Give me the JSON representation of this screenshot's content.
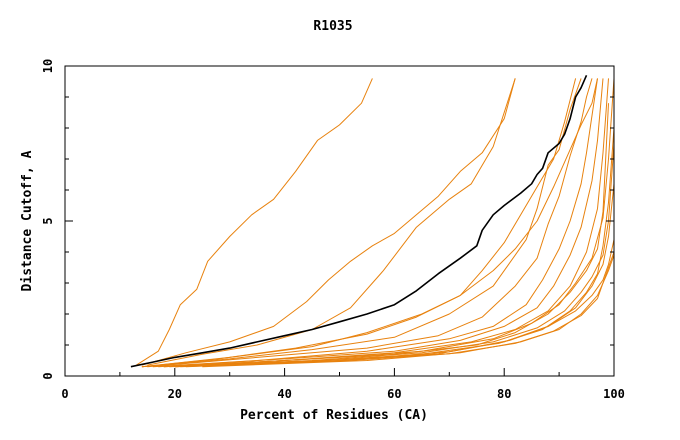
{
  "chart_data": {
    "type": "line",
    "title": "R1035",
    "xlabel": "Percent of Residues (CA)",
    "ylabel": "Distance Cutoff, A",
    "xlim": [
      0,
      100
    ],
    "ylim": [
      0,
      10
    ],
    "x_ticks": [
      "0",
      "20",
      "40",
      "60",
      "80",
      "100"
    ],
    "y_ticks": [
      "0",
      "5",
      "10"
    ],
    "grid": false,
    "legend": "none",
    "colors": {
      "highlight": "#000000",
      "others": "#e8820e"
    },
    "highlight_series": {
      "x": [
        12,
        16,
        20,
        25,
        30,
        35,
        40,
        45,
        50,
        55,
        60,
        64,
        68,
        72,
        75,
        76,
        78,
        80,
        83,
        85,
        86,
        87,
        88,
        90,
        91,
        92,
        93,
        94,
        95
      ],
      "y": [
        0.3,
        0.45,
        0.6,
        0.75,
        0.9,
        1.1,
        1.3,
        1.5,
        1.75,
        2.0,
        2.3,
        2.75,
        3.3,
        3.8,
        4.2,
        4.7,
        5.2,
        5.5,
        5.9,
        6.2,
        6.5,
        6.7,
        7.2,
        7.5,
        7.8,
        8.3,
        9.0,
        9.3,
        9.7
      ]
    },
    "series": [
      {
        "x": [
          13,
          17,
          19,
          21,
          24,
          26,
          30,
          34,
          38,
          42,
          46,
          50,
          54,
          56
        ],
        "y": [
          0.35,
          0.8,
          1.5,
          2.3,
          2.8,
          3.7,
          4.5,
          5.2,
          5.7,
          6.6,
          7.6,
          8.1,
          8.8,
          9.6
        ]
      },
      {
        "x": [
          14,
          22,
          30,
          38,
          44,
          48,
          52,
          56,
          60,
          64,
          68,
          72,
          76,
          80,
          82
        ],
        "y": [
          0.35,
          0.75,
          1.1,
          1.6,
          2.4,
          3.1,
          3.7,
          4.2,
          4.6,
          5.2,
          5.8,
          6.6,
          7.2,
          8.3,
          9.6
        ]
      },
      {
        "x": [
          15,
          25,
          35,
          45,
          52,
          58,
          64,
          70,
          74,
          78,
          82
        ],
        "y": [
          0.35,
          0.7,
          1.0,
          1.5,
          2.2,
          3.4,
          4.8,
          5.7,
          6.2,
          7.4,
          9.6
        ]
      },
      {
        "x": [
          14,
          30,
          45,
          55,
          65,
          72,
          76,
          80,
          83,
          86,
          89,
          91,
          93
        ],
        "y": [
          0.3,
          0.6,
          0.95,
          1.4,
          2.0,
          2.6,
          3.4,
          4.3,
          5.2,
          6.1,
          7.0,
          8.2,
          9.6
        ]
      },
      {
        "x": [
          14,
          30,
          45,
          60,
          70,
          78,
          84,
          86,
          88,
          90,
          92,
          94
        ],
        "y": [
          0.3,
          0.55,
          0.85,
          1.25,
          2.0,
          2.9,
          4.4,
          5.4,
          6.8,
          7.3,
          8.6,
          9.6
        ]
      },
      {
        "x": [
          15,
          35,
          55,
          68,
          76,
          82,
          86,
          88,
          90,
          92,
          94,
          95,
          96
        ],
        "y": [
          0.3,
          0.6,
          0.9,
          1.3,
          1.9,
          2.9,
          3.8,
          4.9,
          5.8,
          7.1,
          8.2,
          9.0,
          9.6
        ]
      },
      {
        "x": [
          16,
          35,
          55,
          70,
          78,
          84,
          87,
          90,
          92,
          94,
          95,
          96,
          97
        ],
        "y": [
          0.3,
          0.5,
          0.8,
          1.2,
          1.6,
          2.3,
          3.1,
          4.1,
          5.0,
          6.2,
          7.2,
          8.4,
          9.6
        ]
      },
      {
        "x": [
          17,
          40,
          60,
          72,
          80,
          86,
          89,
          92,
          94,
          96,
          97,
          98
        ],
        "y": [
          0.3,
          0.55,
          0.8,
          1.15,
          1.6,
          2.2,
          2.9,
          3.9,
          4.8,
          6.3,
          7.6,
          9.6
        ]
      },
      {
        "x": [
          18,
          40,
          60,
          74,
          82,
          88,
          92,
          95,
          97,
          98,
          99
        ],
        "y": [
          0.3,
          0.5,
          0.75,
          1.1,
          1.5,
          2.1,
          2.9,
          4.0,
          5.4,
          7.2,
          9.6
        ]
      },
      {
        "x": [
          20,
          45,
          65,
          78,
          85,
          90,
          93,
          96,
          98,
          99,
          100
        ],
        "y": [
          0.3,
          0.55,
          0.8,
          1.2,
          1.7,
          2.3,
          3.0,
          3.8,
          5.1,
          7.0,
          9.6
        ]
      },
      {
        "x": [
          18,
          40,
          60,
          75,
          82,
          88,
          92,
          95,
          97,
          98,
          99
        ],
        "y": [
          0.3,
          0.5,
          0.7,
          1.0,
          1.4,
          2.0,
          2.7,
          3.4,
          4.1,
          5.3,
          8.8
        ]
      },
      {
        "x": [
          19,
          45,
          65,
          78,
          86,
          91,
          94,
          96,
          98,
          99,
          100
        ],
        "y": [
          0.3,
          0.5,
          0.75,
          1.1,
          1.55,
          2.1,
          2.7,
          3.2,
          3.9,
          5.0,
          7.5
        ]
      },
      {
        "x": [
          20,
          45,
          65,
          79,
          87,
          92,
          95,
          97,
          98,
          99,
          100,
          100
        ],
        "y": [
          0.3,
          0.48,
          0.7,
          1.05,
          1.5,
          2.1,
          2.7,
          3.3,
          4.2,
          5.6,
          8.0,
          9.6
        ]
      },
      {
        "x": [
          21,
          48,
          68,
          80,
          88,
          93,
          96,
          98,
          99,
          100,
          100
        ],
        "y": [
          0.3,
          0.48,
          0.72,
          1.1,
          1.6,
          2.2,
          2.9,
          3.6,
          4.5,
          6.2,
          9.6
        ]
      },
      {
        "x": [
          20,
          50,
          70,
          81,
          88,
          93,
          96,
          98,
          99,
          100,
          100
        ],
        "y": [
          0.3,
          0.5,
          0.78,
          1.15,
          1.6,
          2.1,
          2.6,
          3.1,
          3.6,
          4.4,
          5.2
        ]
      },
      {
        "x": [
          22,
          50,
          70,
          82,
          89,
          94,
          97,
          98,
          99,
          100,
          100
        ],
        "y": [
          0.3,
          0.48,
          0.72,
          1.05,
          1.45,
          1.95,
          2.5,
          3.0,
          3.5,
          4.0,
          4.8
        ]
      },
      {
        "x": [
          25,
          55,
          72,
          83,
          90,
          94,
          97,
          98,
          99,
          100
        ],
        "y": [
          0.3,
          0.5,
          0.75,
          1.1,
          1.5,
          2.0,
          2.6,
          3.0,
          3.4,
          3.9
        ]
      },
      {
        "x": [
          14,
          28,
          42,
          55,
          64,
          72,
          78,
          82,
          86,
          89,
          92,
          94,
          96,
          97
        ],
        "y": [
          0.3,
          0.55,
          0.9,
          1.35,
          1.9,
          2.6,
          3.4,
          4.1,
          5.0,
          6.1,
          7.3,
          8.1,
          8.8,
          9.6
        ]
      }
    ]
  }
}
